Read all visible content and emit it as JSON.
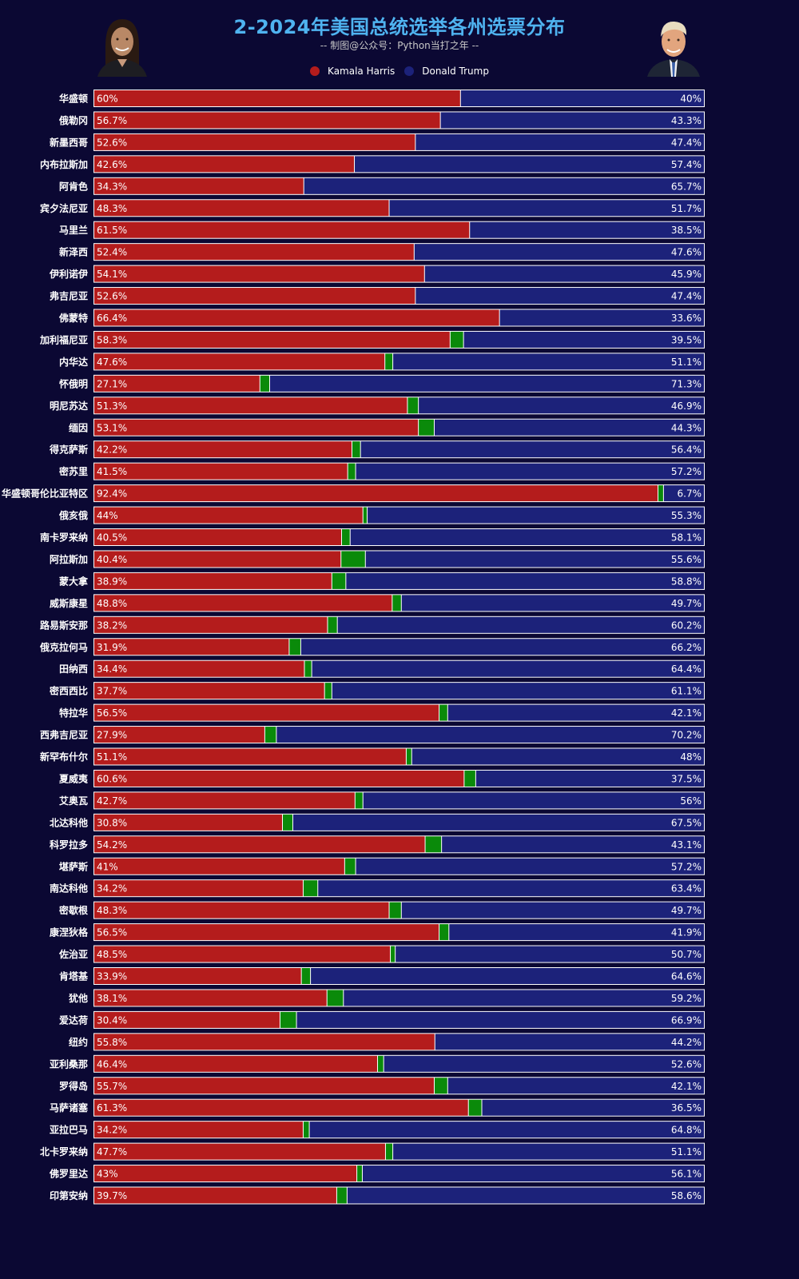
{
  "header": {
    "title": "2-2024年美国总统选举各州选票分布",
    "subtitle": "-- 制图@公众号：Python当打之年 --"
  },
  "colors": {
    "background": "#0b0833",
    "harris": "#b41c1c",
    "trump": "#1c227a",
    "other": "#0a8a0a",
    "title": "#4fb3f0"
  },
  "portraits": {
    "left": "kamala-harris-portrait",
    "right": "donald-trump-portrait"
  },
  "chart_data": {
    "type": "bar",
    "orientation": "horizontal",
    "stacked": true,
    "series_order": [
      "harris",
      "other",
      "trump"
    ],
    "legend": {
      "position": "top-center",
      "entries": [
        "Kamala Harris",
        "Donald Trump"
      ]
    },
    "xlim": [
      0,
      100
    ],
    "rows": [
      {
        "state": "华盛顿",
        "harris": 60,
        "trump": 40
      },
      {
        "state": "俄勒冈",
        "harris": 56.7,
        "trump": 43.3
      },
      {
        "state": "新墨西哥",
        "harris": 52.6,
        "trump": 47.4
      },
      {
        "state": "内布拉斯加",
        "harris": 42.6,
        "trump": 57.4
      },
      {
        "state": "阿肯色",
        "harris": 34.3,
        "trump": 65.7
      },
      {
        "state": "宾夕法尼亚",
        "harris": 48.3,
        "trump": 51.7
      },
      {
        "state": "马里兰",
        "harris": 61.5,
        "trump": 38.5
      },
      {
        "state": "新泽西",
        "harris": 52.4,
        "trump": 47.6
      },
      {
        "state": "伊利诺伊",
        "harris": 54.1,
        "trump": 45.9
      },
      {
        "state": "弗吉尼亚",
        "harris": 52.6,
        "trump": 47.4
      },
      {
        "state": "佛蒙特",
        "harris": 66.4,
        "trump": 33.6
      },
      {
        "state": "加利福尼亚",
        "harris": 58.3,
        "trump": 39.5
      },
      {
        "state": "内华达",
        "harris": 47.6,
        "trump": 51.1
      },
      {
        "state": "怀俄明",
        "harris": 27.1,
        "trump": 71.3
      },
      {
        "state": "明尼苏达",
        "harris": 51.3,
        "trump": 46.9
      },
      {
        "state": "缅因",
        "harris": 53.1,
        "trump": 44.3
      },
      {
        "state": "得克萨斯",
        "harris": 42.2,
        "trump": 56.4
      },
      {
        "state": "密苏里",
        "harris": 41.5,
        "trump": 57.2
      },
      {
        "state": "华盛顿哥伦比亚特区",
        "harris": 92.4,
        "trump": 6.7
      },
      {
        "state": "俄亥俄",
        "harris": 44,
        "trump": 55.3
      },
      {
        "state": "南卡罗来纳",
        "harris": 40.5,
        "trump": 58.1
      },
      {
        "state": "阿拉斯加",
        "harris": 40.4,
        "trump": 55.6
      },
      {
        "state": "蒙大拿",
        "harris": 38.9,
        "trump": 58.8
      },
      {
        "state": "威斯康星",
        "harris": 48.8,
        "trump": 49.7
      },
      {
        "state": "路易斯安那",
        "harris": 38.2,
        "trump": 60.2
      },
      {
        "state": "俄克拉何马",
        "harris": 31.9,
        "trump": 66.2
      },
      {
        "state": "田纳西",
        "harris": 34.4,
        "trump": 64.4
      },
      {
        "state": "密西西比",
        "harris": 37.7,
        "trump": 61.1
      },
      {
        "state": "特拉华",
        "harris": 56.5,
        "trump": 42.1
      },
      {
        "state": "西弗吉尼亚",
        "harris": 27.9,
        "trump": 70.2
      },
      {
        "state": "新罕布什尔",
        "harris": 51.1,
        "trump": 48
      },
      {
        "state": "夏威夷",
        "harris": 60.6,
        "trump": 37.5
      },
      {
        "state": "艾奥瓦",
        "harris": 42.7,
        "trump": 56
      },
      {
        "state": "北达科他",
        "harris": 30.8,
        "trump": 67.5
      },
      {
        "state": "科罗拉多",
        "harris": 54.2,
        "trump": 43.1
      },
      {
        "state": "堪萨斯",
        "harris": 41,
        "trump": 57.2
      },
      {
        "state": "南达科他",
        "harris": 34.2,
        "trump": 63.4
      },
      {
        "state": "密歇根",
        "harris": 48.3,
        "trump": 49.7
      },
      {
        "state": "康涅狄格",
        "harris": 56.5,
        "trump": 41.9
      },
      {
        "state": "佐治亚",
        "harris": 48.5,
        "trump": 50.7
      },
      {
        "state": "肯塔基",
        "harris": 33.9,
        "trump": 64.6
      },
      {
        "state": "犹他",
        "harris": 38.1,
        "trump": 59.2
      },
      {
        "state": "爱达荷",
        "harris": 30.4,
        "trump": 66.9
      },
      {
        "state": "纽约",
        "harris": 55.8,
        "trump": 44.2
      },
      {
        "state": "亚利桑那",
        "harris": 46.4,
        "trump": 52.6
      },
      {
        "state": "罗得岛",
        "harris": 55.7,
        "trump": 42.1
      },
      {
        "state": "马萨诸塞",
        "harris": 61.3,
        "trump": 36.5
      },
      {
        "state": "亚拉巴马",
        "harris": 34.2,
        "trump": 64.8
      },
      {
        "state": "北卡罗来纳",
        "harris": 47.7,
        "trump": 51.1
      },
      {
        "state": "佛罗里达",
        "harris": 43,
        "trump": 56.1
      },
      {
        "state": "印第安纳",
        "harris": 39.7,
        "trump": 58.6
      }
    ]
  }
}
